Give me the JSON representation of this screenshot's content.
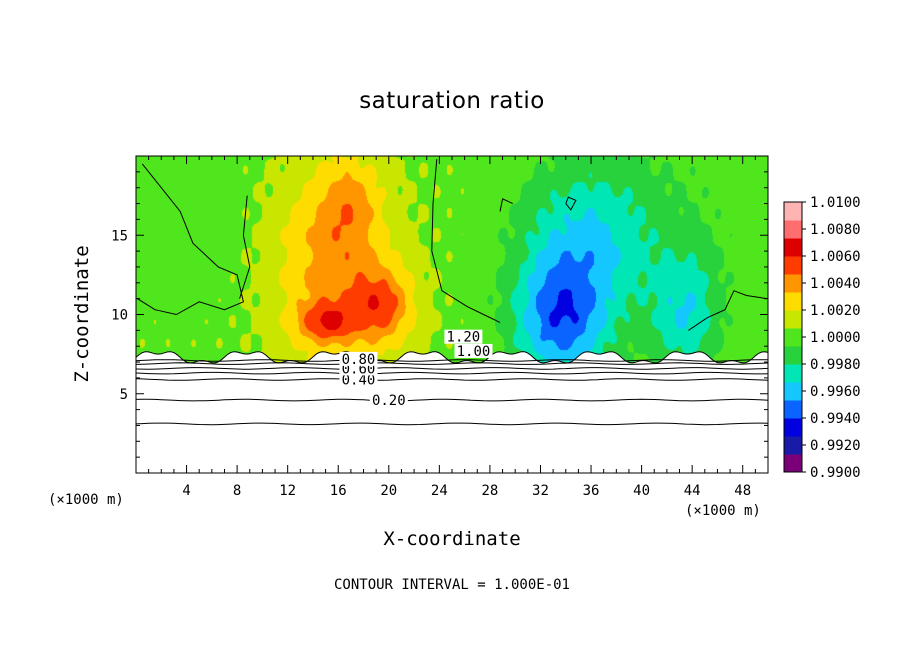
{
  "chart_data": {
    "type": "heatmap",
    "title": "saturation ratio",
    "xlabel": "X-coordinate",
    "ylabel": "Z-coordinate",
    "x_scale_label": "(×1000 m)",
    "x_ticks": [
      4,
      8,
      12,
      16,
      20,
      24,
      28,
      32,
      36,
      40,
      44,
      48
    ],
    "y_ticks": [
      5,
      10,
      15
    ],
    "xlim": [
      0,
      50
    ],
    "ylim": [
      0,
      20
    ],
    "colorbar": {
      "tick_labels": [
        "1.0100",
        "1.0080",
        "1.0060",
        "1.0040",
        "1.0020",
        "1.0000",
        "0.9980",
        "0.9960",
        "0.9940",
        "0.9920",
        "0.9900"
      ],
      "levels": [
        1.01,
        1.008,
        1.006,
        1.004,
        1.002,
        1.0,
        0.998,
        0.996,
        0.994,
        0.992,
        0.99
      ],
      "colors": [
        "#7a007a",
        "#1a1aa8",
        "#0000e0",
        "#0a64ff",
        "#14c8ff",
        "#00e6b4",
        "#28d23c",
        "#50e61e",
        "#c8e600",
        "#ffdc00",
        "#ff9600",
        "#ff3c00",
        "#dc0000",
        "#ff6e6e",
        "#ffb4b4"
      ],
      "min": 0.99,
      "max": 1.01
    },
    "contour_labels": [
      {
        "text": "0.20",
        "x": 20.0,
        "y": 4.6
      },
      {
        "text": "0.40",
        "x": 17.6,
        "y": 5.9
      },
      {
        "text": "0.60",
        "x": 17.6,
        "y": 6.6
      },
      {
        "text": "0.80",
        "x": 17.6,
        "y": 7.2
      },
      {
        "text": "1.00",
        "x": 26.7,
        "y": 7.7
      },
      {
        "text": "1.20",
        "x": 25.9,
        "y": 8.6
      }
    ],
    "contour_interval": "CONTOUR INTERVAL = 1.000E-01",
    "grid": false
  }
}
